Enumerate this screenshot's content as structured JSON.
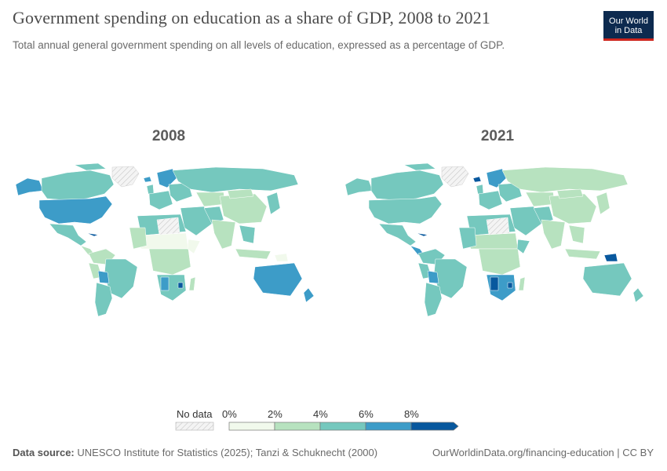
{
  "header": {
    "title": "Government spending on education as a share of GDP, 2008 to 2021",
    "subtitle": "Total annual general government spending on all levels of education, expressed as a percentage of GDP."
  },
  "logo": {
    "line1": "Our World",
    "line2": "in Data"
  },
  "maps": [
    {
      "year": "2008"
    },
    {
      "year": "2021"
    }
  ],
  "legend": {
    "no_data_label": "No data",
    "ticks": [
      "0%",
      "2%",
      "4%",
      "6%",
      "8%"
    ],
    "colors": {
      "bin_0_2": "#f1f9ec",
      "bin_2_4": "#b7e2bf",
      "bin_4_6": "#75c8be",
      "bin_6_8": "#3d9cc8",
      "bin_8_plus": "#08589e",
      "no_data": "#e8e8e8"
    }
  },
  "footer": {
    "source_label": "Data source:",
    "source_text": "UNESCO Institute for Statistics (2025); Tanzi & Schuknecht (2000)",
    "url": "OurWorldinData.org/financing-education | CC BY"
  }
}
